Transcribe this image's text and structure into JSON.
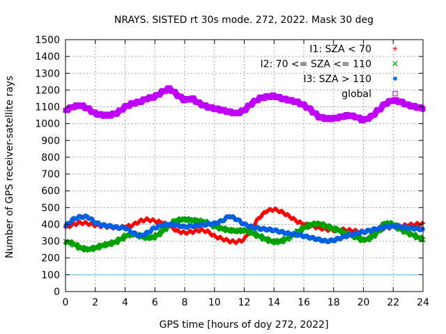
{
  "chart_data": {
    "type": "scatter",
    "title": "NRAYS. SISTED rt 30s mode. 272, 2022. Mask 30 deg",
    "xlabel": "GPS time [hours of doy 272, 2022]",
    "ylabel": "Number of GPS receiver-satellite rays",
    "xlim": [
      0,
      24
    ],
    "ylim": [
      0,
      1500
    ],
    "xticks": [
      0,
      2,
      4,
      6,
      8,
      10,
      12,
      14,
      16,
      18,
      20,
      22,
      24
    ],
    "yticks": [
      0,
      100,
      200,
      300,
      400,
      500,
      600,
      700,
      800,
      900,
      1000,
      1100,
      1200,
      1300,
      1400,
      1500
    ],
    "grid": true,
    "legend_position": "top-right",
    "reference_line": {
      "y": 100,
      "color": "#40c8e0"
    },
    "series": [
      {
        "name": "I1: SZA < 70",
        "marker": "+",
        "color": "#ff0000",
        "x": [
          0,
          0.5,
          1,
          1.5,
          2,
          2.5,
          3,
          3.5,
          4,
          4.5,
          5,
          5.5,
          6,
          6.5,
          7,
          7.5,
          8,
          8.5,
          9,
          9.5,
          10,
          10.5,
          11,
          11.5,
          12,
          12.5,
          13,
          13.5,
          14,
          14.5,
          15,
          15.5,
          16,
          16.5,
          17,
          17.5,
          18,
          18.5,
          19,
          19.5,
          20,
          20.5,
          21,
          21.5,
          22,
          22.5,
          23,
          23.5,
          24
        ],
        "values": [
          380,
          400,
          410,
          405,
          395,
          390,
          385,
          380,
          385,
          395,
          420,
          430,
          420,
          410,
          390,
          360,
          350,
          355,
          365,
          360,
          330,
          315,
          300,
          295,
          310,
          380,
          440,
          480,
          490,
          475,
          450,
          420,
          400,
          390,
          380,
          370,
          365,
          370,
          365,
          360,
          355,
          360,
          370,
          380,
          385,
          390,
          395,
          400,
          405
        ]
      },
      {
        "name": "I2: 70 <= SZA <= 110",
        "marker": "x",
        "color": "#00a000",
        "x": [
          0,
          0.5,
          1,
          1.5,
          2,
          2.5,
          3,
          3.5,
          4,
          4.5,
          5,
          5.5,
          6,
          6.5,
          7,
          7.5,
          8,
          8.5,
          9,
          9.5,
          10,
          10.5,
          11,
          11.5,
          12,
          12.5,
          13,
          13.5,
          14,
          14.5,
          15,
          15.5,
          16,
          16.5,
          17,
          17.5,
          18,
          18.5,
          19,
          19.5,
          20,
          20.5,
          21,
          21.5,
          22,
          22.5,
          23,
          23.5,
          24
        ],
        "values": [
          300,
          285,
          260,
          250,
          260,
          275,
          285,
          300,
          330,
          345,
          330,
          320,
          325,
          360,
          400,
          425,
          430,
          425,
          420,
          410,
          390,
          375,
          365,
          360,
          365,
          350,
          330,
          310,
          295,
          300,
          320,
          350,
          380,
          400,
          405,
          390,
          375,
          360,
          340,
          325,
          305,
          320,
          360,
          410,
          400,
          370,
          350,
          330,
          310
        ]
      },
      {
        "name": "I3: SZA > 110",
        "marker": "*",
        "color": "#0060e0",
        "x": [
          0,
          0.5,
          1,
          1.5,
          2,
          2.5,
          3,
          3.5,
          4,
          4.5,
          5,
          5.5,
          6,
          6.5,
          7,
          7.5,
          8,
          8.5,
          9,
          9.5,
          10,
          10.5,
          11,
          11.5,
          12,
          12.5,
          13,
          13.5,
          14,
          14.5,
          15,
          15.5,
          16,
          16.5,
          17,
          17.5,
          18,
          18.5,
          19,
          19.5,
          20,
          20.5,
          21,
          21.5,
          22,
          22.5,
          23,
          23.5,
          24
        ],
        "values": [
          390,
          430,
          445,
          445,
          410,
          395,
          390,
          380,
          380,
          350,
          330,
          350,
          380,
          395,
          400,
          395,
          385,
          390,
          395,
          400,
          405,
          420,
          450,
          430,
          400,
          385,
          375,
          370,
          365,
          355,
          345,
          340,
          330,
          320,
          310,
          300,
          305,
          320,
          335,
          345,
          355,
          365,
          375,
          385,
          390,
          385,
          380,
          375,
          370
        ]
      },
      {
        "name": "global",
        "marker": "square",
        "color": "#c000ff",
        "x": [
          0,
          0.5,
          1,
          1.5,
          2,
          2.5,
          3,
          3.5,
          4,
          4.5,
          5,
          5.5,
          6,
          6.5,
          7,
          7.5,
          8,
          8.5,
          9,
          9.5,
          10,
          10.5,
          11,
          11.5,
          12,
          12.5,
          13,
          13.5,
          14,
          14.5,
          15,
          15.5,
          16,
          16.5,
          17,
          17.5,
          18,
          18.5,
          19,
          19.5,
          20,
          20.5,
          21,
          21.5,
          22,
          22.5,
          23,
          23.5,
          24
        ],
        "values": [
          1080,
          1100,
          1110,
          1090,
          1060,
          1050,
          1050,
          1065,
          1100,
          1120,
          1130,
          1150,
          1160,
          1190,
          1210,
          1170,
          1140,
          1150,
          1120,
          1100,
          1090,
          1080,
          1070,
          1060,
          1080,
          1120,
          1150,
          1160,
          1165,
          1150,
          1140,
          1130,
          1110,
          1080,
          1040,
          1030,
          1030,
          1040,
          1050,
          1040,
          1020,
          1040,
          1080,
          1120,
          1140,
          1130,
          1110,
          1100,
          1090
        ]
      }
    ]
  }
}
